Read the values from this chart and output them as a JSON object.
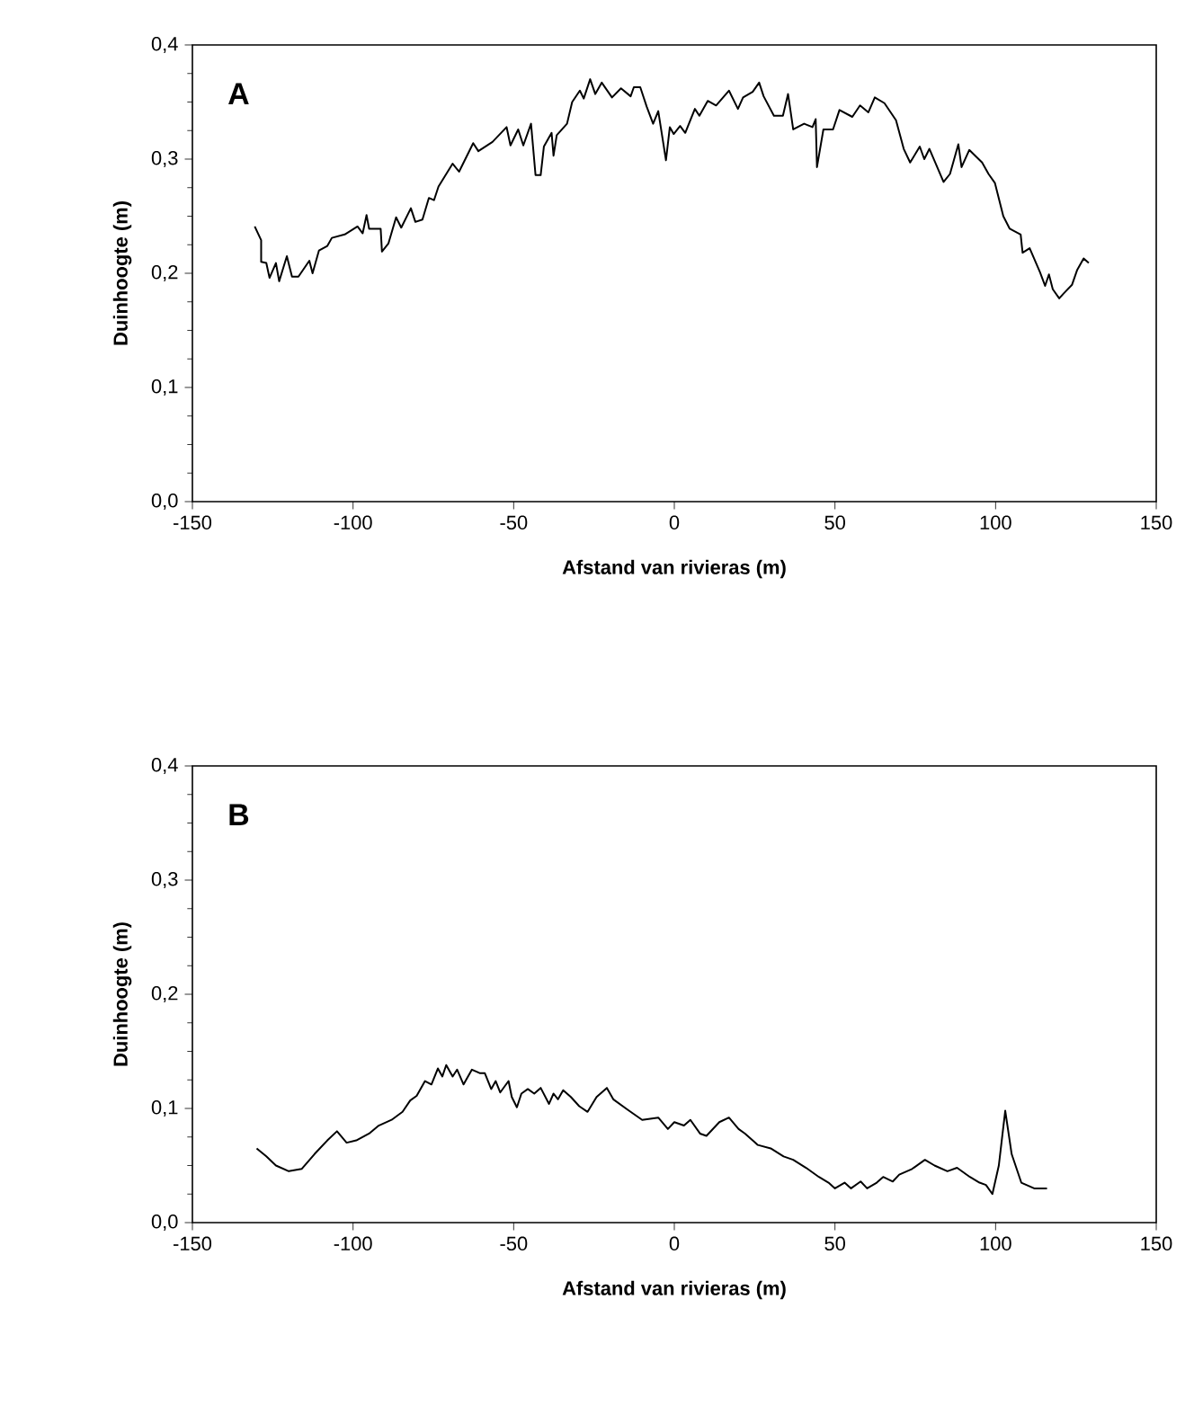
{
  "chart_data": [
    {
      "type": "line",
      "xlabel": "Afstand van rivieras (m)",
      "ylabel": "Duinhoogte (m)",
      "annotations": [
        "A"
      ],
      "xlim": [
        -150,
        150
      ],
      "xticks": [
        -150,
        -100,
        -50,
        0,
        50,
        100,
        150
      ],
      "ylim": [
        0,
        0.4
      ],
      "yticks": [
        {
          "value": 0,
          "label": "0,0"
        },
        {
          "value": 0.1,
          "label": "0,1"
        },
        {
          "value": 0.2,
          "label": "0,2"
        },
        {
          "value": 0.3,
          "label": "0,3"
        },
        {
          "value": 0.4,
          "label": "0,4"
        }
      ],
      "series": [
        {
          "color": "#000000",
          "x": [
            -130.6,
            -128.6,
            -128.6,
            -127,
            -126,
            -124,
            -123,
            -120.6,
            -119,
            -117,
            -113.6,
            -112.6,
            -110.6,
            -108,
            -106.6,
            -102.6,
            -98.6,
            -97,
            -95.8,
            -95,
            -91.4,
            -91,
            -89,
            -86.6,
            -85,
            -82,
            -80.6,
            -78.4,
            -76.4,
            -74.8,
            -73.4,
            -69,
            -67,
            -62.6,
            -61,
            -56.6,
            -52.2,
            -51,
            -48.6,
            -47,
            -44.6,
            -43.2,
            -41.6,
            -40.6,
            -38.2,
            -37.6,
            -36.6,
            -33.4,
            -31.8,
            -29.4,
            -28.2,
            -26.2,
            -24.6,
            -22.6,
            -19.4,
            -16.6,
            -13.6,
            -12.6,
            -10.6,
            -8.6,
            -6.6,
            -5,
            -2.6,
            -1.4,
            -0.2,
            1.8,
            3.4,
            6.4,
            7.8,
            10.4,
            13,
            17,
            19.8,
            21.4,
            24.4,
            26.4,
            27.8,
            31,
            33.8,
            35.4,
            37,
            40.4,
            43,
            44,
            44.4,
            46.4,
            49.4,
            51.4,
            55.4,
            57.8,
            60.4,
            62.4,
            65.4,
            69,
            71.4,
            73.4,
            76.4,
            77.8,
            79.4,
            83.8,
            85.8,
            88.4,
            89.4,
            91.8,
            95.8,
            97.8,
            99.8,
            102.4,
            104.4,
            107.8,
            108.4,
            110.6,
            113.8,
            115.4,
            116.6,
            117.8,
            119.8,
            121.4,
            123.8,
            125.4,
            127.4,
            129
          ],
          "values": [
            0.241,
            0.229,
            0.21,
            0.209,
            0.196,
            0.209,
            0.193,
            0.215,
            0.197,
            0.197,
            0.211,
            0.2,
            0.22,
            0.224,
            0.231,
            0.234,
            0.241,
            0.235,
            0.251,
            0.239,
            0.239,
            0.219,
            0.226,
            0.249,
            0.24,
            0.257,
            0.245,
            0.247,
            0.266,
            0.264,
            0.276,
            0.296,
            0.289,
            0.314,
            0.307,
            0.315,
            0.328,
            0.312,
            0.326,
            0.312,
            0.331,
            0.286,
            0.286,
            0.311,
            0.323,
            0.303,
            0.321,
            0.331,
            0.35,
            0.36,
            0.353,
            0.37,
            0.357,
            0.367,
            0.354,
            0.362,
            0.355,
            0.363,
            0.363,
            0.346,
            0.331,
            0.342,
            0.299,
            0.328,
            0.322,
            0.329,
            0.323,
            0.344,
            0.338,
            0.351,
            0.347,
            0.36,
            0.344,
            0.354,
            0.359,
            0.367,
            0.355,
            0.338,
            0.338,
            0.357,
            0.326,
            0.331,
            0.328,
            0.335,
            0.293,
            0.326,
            0.326,
            0.343,
            0.337,
            0.347,
            0.341,
            0.354,
            0.349,
            0.334,
            0.309,
            0.297,
            0.311,
            0.3,
            0.309,
            0.28,
            0.287,
            0.313,
            0.293,
            0.308,
            0.297,
            0.287,
            0.279,
            0.25,
            0.239,
            0.234,
            0.218,
            0.222,
            0.201,
            0.189,
            0.199,
            0.186,
            0.178,
            0.183,
            0.19,
            0.203,
            0.213,
            0.209
          ]
        }
      ]
    },
    {
      "type": "line",
      "xlabel": "Afstand van rivieras (m)",
      "ylabel": "Duinhoogte (m)",
      "annotations": [
        "B"
      ],
      "xlim": [
        -150,
        150
      ],
      "xticks": [
        -150,
        -100,
        -50,
        0,
        50,
        100,
        150
      ],
      "ylim": [
        0,
        0.4
      ],
      "yticks": [
        {
          "value": 0,
          "label": "0,0"
        },
        {
          "value": 0.1,
          "label": "0,1"
        },
        {
          "value": 0.2,
          "label": "0,2"
        },
        {
          "value": 0.3,
          "label": "0,3"
        },
        {
          "value": 0.4,
          "label": "0,4"
        }
      ],
      "series": [
        {
          "color": "#000000",
          "x": [
            -130,
            -127,
            -124,
            -120,
            -116,
            -112,
            -108,
            -105,
            -102,
            -99,
            -95,
            -92,
            -88,
            -84.6,
            -82.2,
            -80.2,
            -77.6,
            -75.6,
            -73.6,
            -72.2,
            -71,
            -69,
            -67.6,
            -65.6,
            -63,
            -60.6,
            -59,
            -57,
            -55.6,
            -54.2,
            -51.6,
            -50.6,
            -49,
            -47.6,
            -45.6,
            -43.6,
            -41.6,
            -39,
            -37.6,
            -36.2,
            -34.6,
            -32.2,
            -29.6,
            -27,
            -24.2,
            -21,
            -19,
            -14.6,
            -10,
            -5,
            -2,
            0,
            3,
            5,
            8,
            10,
            14,
            17,
            20,
            22,
            26,
            30,
            34,
            37,
            41,
            45,
            48,
            50,
            53,
            55,
            58,
            60,
            63,
            65,
            68,
            70,
            74,
            78,
            81,
            85,
            88,
            92,
            95,
            97,
            99,
            101,
            103,
            105,
            108,
            112,
            116
          ],
          "values": [
            0.065,
            0.058,
            0.05,
            0.045,
            0.047,
            0.06,
            0.072,
            0.08,
            0.07,
            0.072,
            0.078,
            0.085,
            0.09,
            0.097,
            0.107,
            0.111,
            0.124,
            0.121,
            0.135,
            0.128,
            0.138,
            0.128,
            0.134,
            0.121,
            0.134,
            0.131,
            0.131,
            0.117,
            0.124,
            0.114,
            0.124,
            0.11,
            0.101,
            0.113,
            0.117,
            0.113,
            0.118,
            0.104,
            0.113,
            0.108,
            0.116,
            0.11,
            0.102,
            0.097,
            0.11,
            0.118,
            0.108,
            0.099,
            0.09,
            0.092,
            0.082,
            0.088,
            0.085,
            0.09,
            0.078,
            0.076,
            0.088,
            0.092,
            0.082,
            0.078,
            0.068,
            0.065,
            0.058,
            0.055,
            0.048,
            0.04,
            0.035,
            0.03,
            0.035,
            0.03,
            0.036,
            0.03,
            0.035,
            0.04,
            0.036,
            0.042,
            0.047,
            0.055,
            0.05,
            0.045,
            0.048,
            0.04,
            0.035,
            0.033,
            0.025,
            0.05,
            0.098,
            0.06,
            0.035,
            0.03,
            0.03
          ]
        }
      ]
    }
  ]
}
